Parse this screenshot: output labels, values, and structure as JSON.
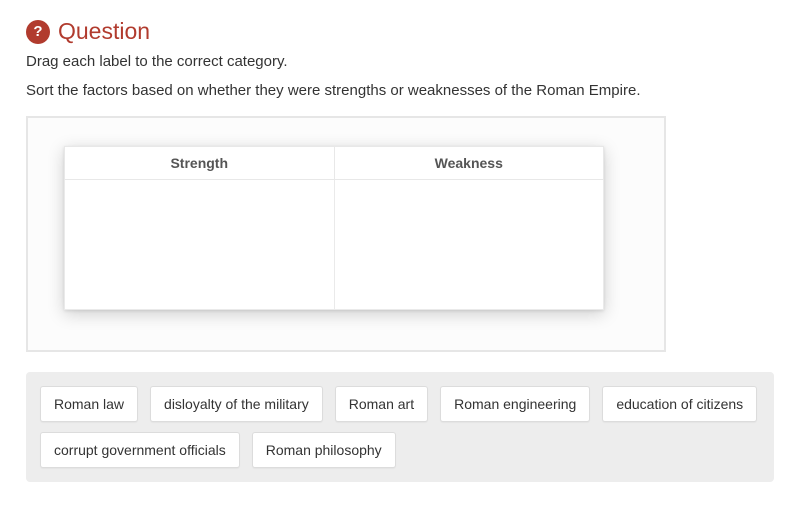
{
  "header": {
    "icon_glyph": "?",
    "title": "Question"
  },
  "instructions": {
    "line1": "Drag each label to the correct category.",
    "line2": "Sort the factors based on whether they were strengths or weaknesses of the Roman Empire."
  },
  "table": {
    "columns": [
      "Strength",
      "Weakness"
    ]
  },
  "chips": [
    "Roman law",
    "disloyalty of the military",
    "Roman art",
    "Roman engineering",
    "education of citizens",
    "corrupt government officials",
    "Roman philosophy"
  ],
  "colors": {
    "accent": "#b13b2e",
    "tray_bg": "#ededed",
    "border": "#e6e6e6"
  }
}
